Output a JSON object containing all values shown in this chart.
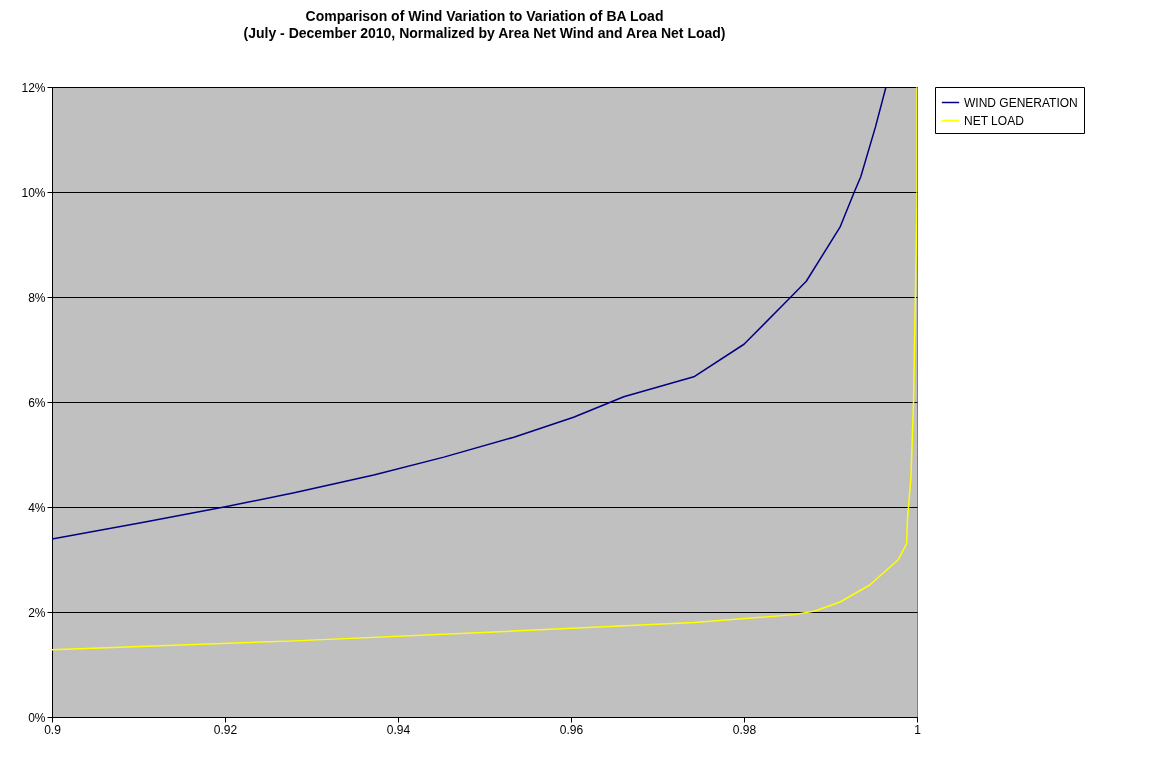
{
  "chart_data": {
    "type": "line",
    "title": "Comparison of Wind Variation to Variation of BA Load",
    "subtitle": "(July - December 2010, Normalized by Area Net Wind and Area Net Load)",
    "xlim": [
      0.9,
      1.0
    ],
    "xticks": [
      0.9,
      0.92,
      0.94,
      0.96,
      0.98,
      1
    ],
    "ylim": [
      0,
      12
    ],
    "yticks": [
      {
        "value": 0,
        "label": "0%"
      },
      {
        "value": 2,
        "label": "2%"
      },
      {
        "value": 4,
        "label": "4%"
      },
      {
        "value": 6,
        "label": "6%"
      },
      {
        "value": 8,
        "label": "8%"
      },
      {
        "value": 10,
        "label": "10%"
      },
      {
        "value": 12,
        "label": "12%"
      }
    ],
    "grid": "y",
    "legend": "right",
    "marker": "none",
    "line_style": "solid",
    "series": [
      {
        "name": "WIND GENERATION",
        "color": "#000080",
        "x": [
          0.9,
          0.9106,
          0.9199,
          0.928,
          0.9372,
          0.9453,
          0.9534,
          0.9603,
          0.9661,
          0.9742,
          0.98,
          0.9853,
          0.9872,
          0.9911,
          0.9927,
          0.9935,
          0.9952,
          0.9964
        ],
        "values": [
          3.39,
          3.71,
          4.0,
          4.27,
          4.61,
          4.95,
          5.33,
          5.71,
          6.1,
          6.48,
          7.1,
          7.98,
          8.3,
          9.33,
          9.98,
          10.29,
          11.24,
          11.99
        ]
      },
      {
        "name": "NET LOAD",
        "color": "#ffff00",
        "x": [
          0.9,
          0.928,
          0.9511,
          0.9742,
          0.9858,
          0.9882,
          0.9911,
          0.9945,
          0.9978,
          0.9988,
          0.9989,
          0.9993,
          0.9996,
          1.0,
          1.0
        ],
        "values": [
          1.28,
          1.45,
          1.62,
          1.8,
          1.95,
          2.02,
          2.19,
          2.51,
          2.99,
          3.3,
          3.77,
          4.57,
          6.0,
          9.8,
          12
        ]
      }
    ]
  }
}
